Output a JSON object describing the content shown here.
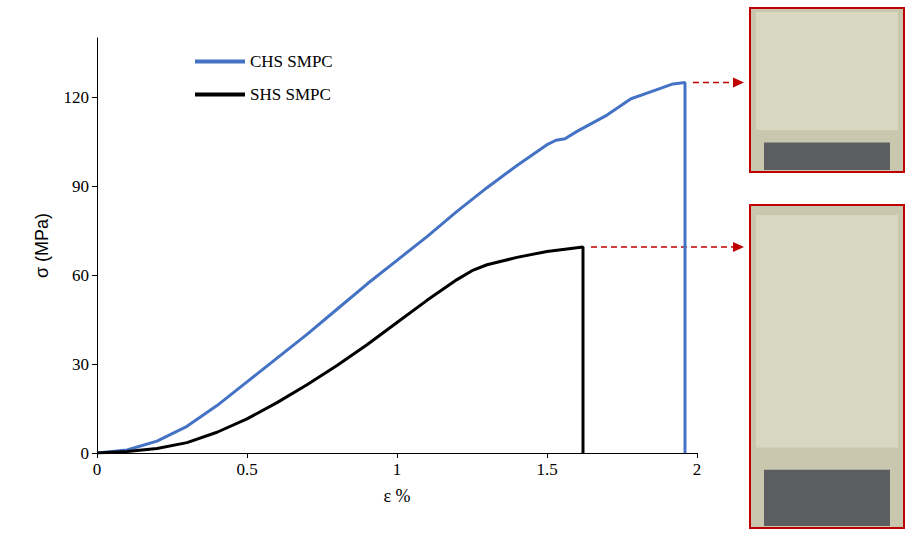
{
  "chart_data": {
    "type": "line",
    "x_label": "ε %",
    "y_label": "σ (MPa)",
    "xlim": [
      0,
      2
    ],
    "xticks": [
      0,
      0.5,
      1,
      1.5,
      2
    ],
    "ylim": [
      0,
      140
    ],
    "yticks": [
      0,
      30,
      60,
      90,
      120
    ],
    "grid": false,
    "legend": "upper left",
    "series": [
      {
        "name": "CHS SMPC",
        "color": "#4472c4",
        "line_style": "solid",
        "marker": "none",
        "x": [
          0,
          0.1,
          0.2,
          0.3,
          0.4,
          0.5,
          0.6,
          0.7,
          0.8,
          0.9,
          1.0,
          1.1,
          1.2,
          1.3,
          1.4,
          1.5,
          1.53,
          1.56,
          1.6,
          1.7,
          1.78,
          1.85,
          1.92,
          1.96,
          1.96
        ],
        "values": [
          0,
          1,
          4,
          9,
          16,
          24,
          32,
          40,
          48.5,
          57,
          65,
          73,
          81.5,
          89.5,
          97,
          104,
          105.5,
          106,
          108.5,
          114,
          119.5,
          122,
          124.5,
          125,
          0
        ]
      },
      {
        "name": "SHS SMPC",
        "color": "#000000",
        "line_style": "solid",
        "marker": "none",
        "x": [
          0,
          0.1,
          0.2,
          0.3,
          0.4,
          0.5,
          0.6,
          0.7,
          0.8,
          0.9,
          1.0,
          1.1,
          1.2,
          1.25,
          1.3,
          1.4,
          1.5,
          1.62,
          1.62
        ],
        "values": [
          0,
          0.5,
          1.5,
          3.5,
          7,
          11.5,
          17,
          23,
          29.5,
          36.5,
          44,
          51.5,
          58.5,
          61.5,
          63.5,
          66,
          68,
          69.5,
          0
        ]
      }
    ]
  }
}
